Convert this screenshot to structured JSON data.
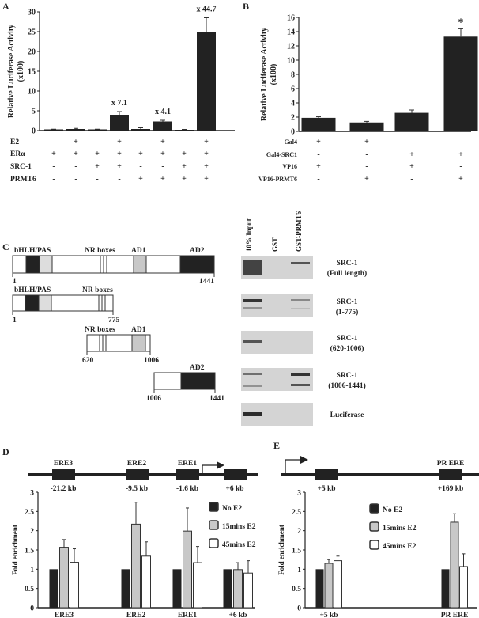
{
  "panel_labels": {
    "A": "A",
    "B": "B",
    "C": "C",
    "D": "D",
    "E": "E"
  },
  "chart_data": [
    {
      "panel": "A",
      "type": "bar",
      "ylabel": "Relative Luciferase Activity",
      "ylabel2": "(x100)",
      "ylim": [
        0,
        30
      ],
      "yticks": [
        "0",
        "5",
        "10",
        "15",
        "20",
        "25",
        "30"
      ],
      "values": [
        0.3,
        0.4,
        0.3,
        4.0,
        0.4,
        2.3,
        0.2,
        25.0
      ],
      "errors": [
        0.05,
        0.15,
        0.05,
        0.8,
        0.3,
        0.3,
        0.1,
        3.5
      ],
      "annotations": [
        "",
        "",
        "",
        "x 7.1",
        "",
        "x 4.1",
        "",
        "x 44.7"
      ],
      "conditions": [
        {
          "label": "E2",
          "values": [
            "-",
            "+",
            "-",
            "+",
            "-",
            "+",
            "-",
            "+"
          ]
        },
        {
          "label": "ERα",
          "values": [
            "+",
            "+",
            "+",
            "+",
            "+",
            "+",
            "+",
            "+"
          ]
        },
        {
          "label": "SRC-1",
          "values": [
            "-",
            "-",
            "+",
            "+",
            "-",
            "-",
            "+",
            "+"
          ]
        },
        {
          "label": "PRMT6",
          "values": [
            "-",
            "-",
            "-",
            "-",
            "+",
            "+",
            "+",
            "+"
          ]
        }
      ],
      "bar_color": "#222222"
    },
    {
      "panel": "B",
      "type": "bar",
      "ylabel": "Relative Luciferase Activity",
      "ylabel2": "(x100)",
      "ylim": [
        0,
        16
      ],
      "yticks": [
        "0",
        "2",
        "4",
        "6",
        "8",
        "10",
        "12",
        "14",
        "16"
      ],
      "values": [
        1.9,
        1.25,
        2.6,
        13.3
      ],
      "errors": [
        0.15,
        0.15,
        0.4,
        1.1
      ],
      "annotations": [
        "",
        "",
        "",
        "*"
      ],
      "conditions": [
        {
          "label": "Gal4",
          "values": [
            "+",
            "+",
            "-",
            "-"
          ]
        },
        {
          "label": "Gal4-SRC1",
          "values": [
            "-",
            "-",
            "+",
            "+"
          ]
        },
        {
          "label": "VP16",
          "values": [
            "+",
            "-",
            "+",
            "-"
          ]
        },
        {
          "label": "VP16-PRMT6",
          "values": [
            "-",
            "+",
            "-",
            "+"
          ]
        }
      ],
      "bar_color": "#222222"
    },
    {
      "panel": "D",
      "type": "bar",
      "ylabel": "Fold enrichment",
      "ylim": [
        0,
        3
      ],
      "yticks": [
        "0",
        "0.5",
        "1",
        "1.5",
        "2",
        "2.5",
        "3"
      ],
      "categories": [
        "ERE3",
        "ERE2",
        "ERE1",
        "+6 kb"
      ],
      "series": [
        {
          "name": "No E2",
          "values": [
            1,
            1,
            1,
            1
          ],
          "errors": [
            0,
            0,
            0,
            0
          ],
          "color": "#222222"
        },
        {
          "name": "15mins E2",
          "values": [
            1.57,
            2.17,
            1.99,
            0.99
          ],
          "errors": [
            0.2,
            0.57,
            0.6,
            0.18
          ],
          "color": "#c8c8c8"
        },
        {
          "name": "45mins E2",
          "values": [
            1.18,
            1.34,
            1.17,
            0.9
          ],
          "errors": [
            0.35,
            0.37,
            0.42,
            0.32
          ],
          "color": "#ffffff"
        }
      ],
      "legend": "top-right",
      "gene_map": {
        "above": [
          "ERE3",
          "ERE2",
          "ERE1",
          ""
        ],
        "below": [
          "-21.2 kb",
          "-9.5 kb",
          "-1.6 kb",
          "+6 kb"
        ]
      }
    },
    {
      "panel": "E",
      "type": "bar",
      "ylabel": "Fold enrichment",
      "ylim": [
        0,
        3
      ],
      "yticks": [
        "0",
        "0.5",
        "1",
        "1.5",
        "2",
        "2.5",
        "3"
      ],
      "categories": [
        "+5 kb",
        "PR ERE"
      ],
      "series": [
        {
          "name": "No E2",
          "values": [
            1,
            1
          ],
          "errors": [
            0,
            0
          ],
          "color": "#222222"
        },
        {
          "name": "15mins E2",
          "values": [
            1.15,
            2.22
          ],
          "errors": [
            0.1,
            0.22
          ],
          "color": "#c8c8c8"
        },
        {
          "name": "45mins E2",
          "values": [
            1.22,
            1.07
          ],
          "errors": [
            0.12,
            0.33
          ],
          "color": "#ffffff"
        }
      ],
      "legend": "top-center",
      "gene_map": {
        "above": [
          "",
          "PR ERE"
        ],
        "below": [
          "+5 kb",
          "+169 kb"
        ]
      }
    }
  ],
  "panel_c": {
    "constructs": [
      {
        "labels": [
          "bHLH/PAS",
          "NR boxes",
          "AD1",
          "AD2"
        ],
        "start": "1",
        "end": "1441"
      },
      {
        "labels": [
          "bHLH/PAS",
          "NR boxes"
        ],
        "start": "1",
        "end": "775"
      },
      {
        "labels": [
          "NR boxes",
          "AD1"
        ],
        "start": "620",
        "end": "1006"
      },
      {
        "labels": [
          "AD2"
        ],
        "start": "1006",
        "end": "1441"
      }
    ],
    "lanes": [
      "10% Input",
      "GST",
      "GST-PRMT6"
    ],
    "blots": [
      {
        "line1": "SRC-1",
        "line2": "(Full length)"
      },
      {
        "line1": "SRC-1",
        "line2": "(1-775)"
      },
      {
        "line1": "SRC-1",
        "line2": "(620-1006)"
      },
      {
        "line1": "SRC-1",
        "line2": "(1006-1441)"
      },
      {
        "line1": "Luciferase",
        "line2": ""
      }
    ]
  }
}
